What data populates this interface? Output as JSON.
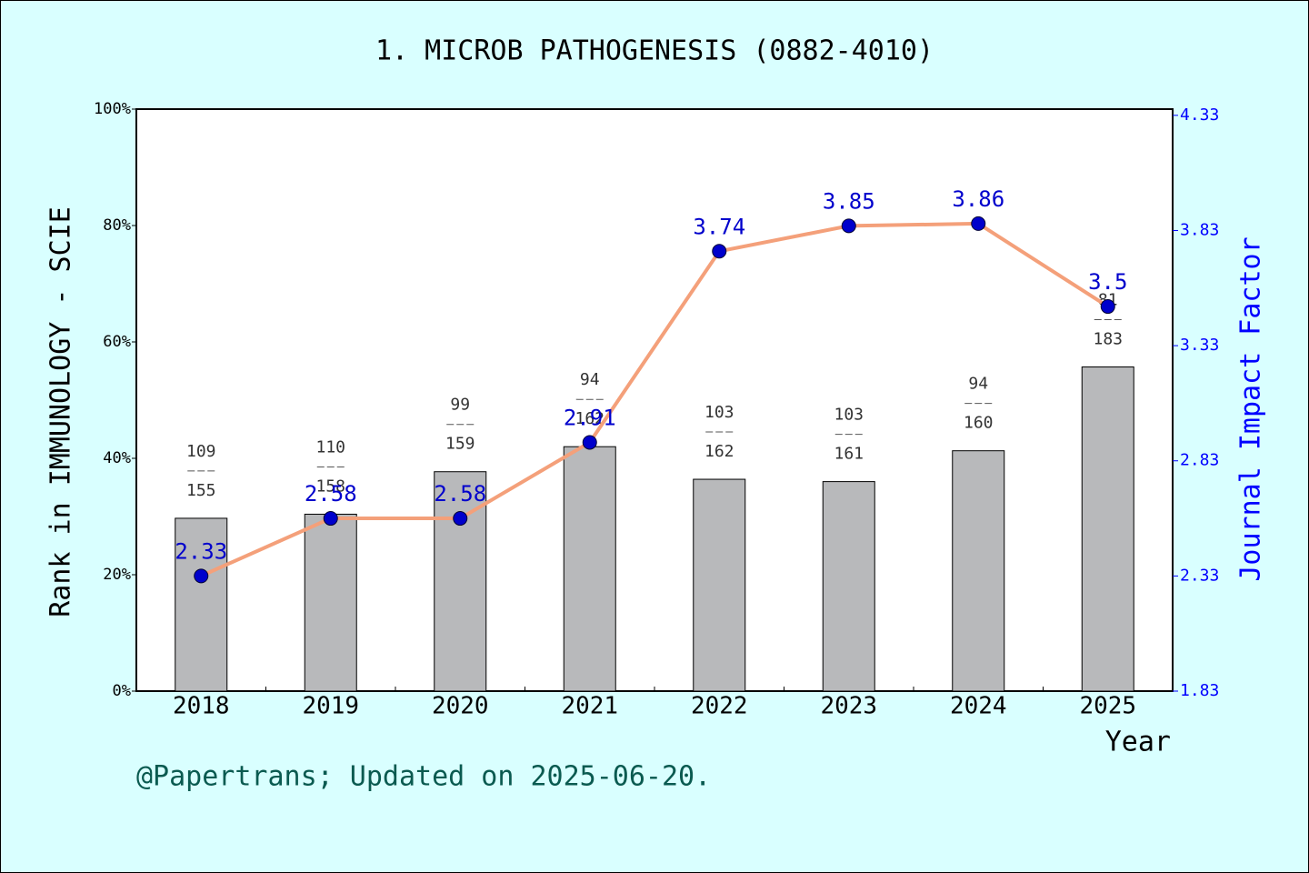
{
  "chart_data": {
    "type": "bar_line",
    "title": "1. MICROB PATHOGENESIS (0882-4010)",
    "ylabel": "Rank in IMMUNOLOGY - SCIE",
    "y2label": "Journal Impact Factor",
    "xlabel": "Year",
    "footer": "@Papertrans; Updated on 2025-06-20.",
    "categories": [
      "2018",
      "2019",
      "2020",
      "2021",
      "2022",
      "2023",
      "2024",
      "2025"
    ],
    "series": [
      {
        "type": "bar",
        "color": "#b8b9bb",
        "values": [
          29.7,
          30.4,
          37.7,
          42.0,
          36.4,
          36.0,
          41.3,
          55.7
        ],
        "ranks": [
          109,
          110,
          99,
          94,
          103,
          103,
          94,
          81
        ],
        "totals": [
          155,
          158,
          159,
          162,
          162,
          161,
          160,
          183
        ]
      },
      {
        "type": "line",
        "axis": "y2",
        "color": "#f4a07a",
        "marker_color": "#0000cc",
        "values": [
          2.33,
          2.58,
          2.58,
          2.91,
          3.74,
          3.85,
          3.86,
          3.5
        ]
      }
    ],
    "ylim": [
      0,
      100
    ],
    "yticks": [
      {
        "value": 0,
        "label": "0%"
      },
      {
        "value": 20,
        "label": "20%"
      },
      {
        "value": 40,
        "label": "40%"
      },
      {
        "value": 60,
        "label": "60%"
      },
      {
        "value": 80,
        "label": "80%"
      },
      {
        "value": 100,
        "label": "100%"
      }
    ],
    "y2lim": [
      1.83,
      4.357
    ],
    "y2ticks": [
      1.83,
      2.33,
      2.83,
      3.33,
      3.83,
      4.33
    ]
  }
}
